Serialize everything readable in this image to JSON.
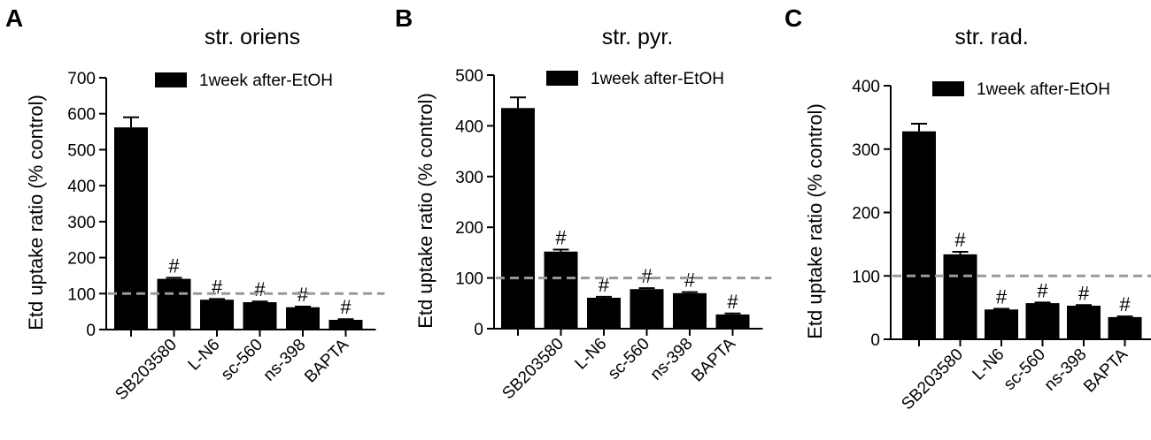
{
  "chart_data": [
    {
      "type": "bar",
      "panel": "A",
      "title": "str. oriens",
      "ylabel": "Etd uptake ratio (% control)",
      "categories": [
        null,
        "SB203580",
        "L-N6",
        "sc-560",
        "ns-398",
        "BAPTA"
      ],
      "series": [
        {
          "name": "1week after-EtOH",
          "color": "#000000",
          "values": [
            562,
            141,
            83,
            76,
            62,
            27
          ],
          "errors": [
            28,
            3,
            2,
            2,
            2,
            2
          ]
        }
      ],
      "value_annotations": [
        null,
        "#",
        "#",
        "#",
        "#",
        "#"
      ],
      "reference_line": 100,
      "ylim": [
        0,
        700
      ],
      "yticks": [
        0,
        100,
        200,
        300,
        400,
        500,
        600,
        700
      ],
      "legend": "top"
    },
    {
      "type": "bar",
      "panel": "B",
      "title": "str. pyr.",
      "ylabel": "Etd uptake ratio (% control)",
      "categories": [
        null,
        "SB203580",
        "L-N6",
        "sc-560",
        "ns-398",
        "BAPTA"
      ],
      "series": [
        {
          "name": "1week after-EtOH",
          "color": "#000000",
          "values": [
            435,
            152,
            61,
            78,
            70,
            28
          ],
          "errors": [
            21,
            4,
            2,
            2,
            2,
            2
          ]
        }
      ],
      "value_annotations": [
        null,
        "#",
        "#",
        "#",
        "#",
        "#"
      ],
      "reference_line": 100,
      "ylim": [
        0,
        500
      ],
      "yticks": [
        0,
        100,
        200,
        300,
        400,
        500
      ],
      "legend": "top"
    },
    {
      "type": "bar",
      "panel": "C",
      "title": "str. rad.",
      "ylabel": "Etd uptake ratio (% control)",
      "categories": [
        null,
        "SB203580",
        "L-N6",
        "sc-560",
        "ns-398",
        "BAPTA"
      ],
      "series": [
        {
          "name": "1week after-EtOH",
          "color": "#000000",
          "values": [
            328,
            134,
            47,
            57,
            53,
            35
          ],
          "errors": [
            12,
            4,
            1,
            1,
            1,
            1
          ]
        }
      ],
      "value_annotations": [
        null,
        "#",
        "#",
        "#",
        "#",
        "#"
      ],
      "reference_line": 100,
      "ylim": [
        0,
        400
      ],
      "yticks": [
        0,
        100,
        200,
        300,
        400
      ],
      "legend": "top"
    }
  ]
}
